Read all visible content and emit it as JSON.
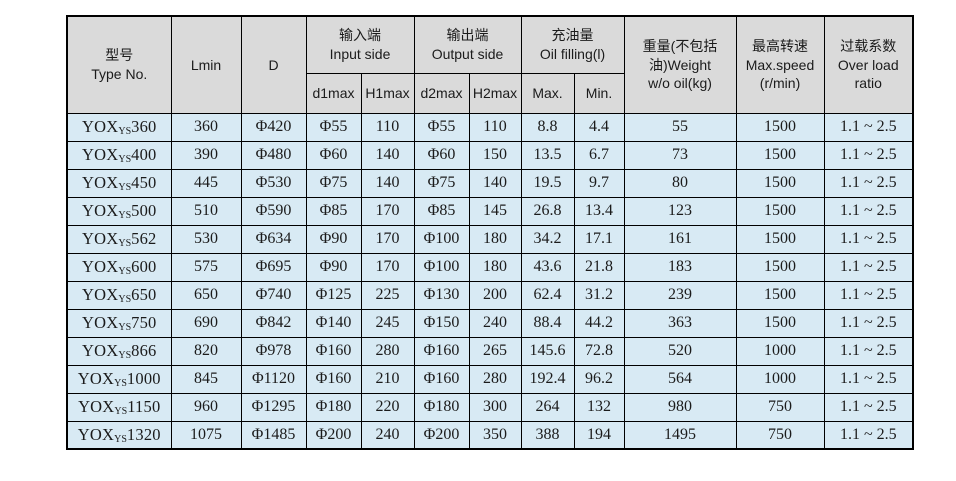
{
  "colors": {
    "header_bg": "#dadada",
    "row_bg": "#d8eaf4",
    "border": "#000000",
    "text": "#1b1b1b",
    "page_bg": "#ffffff"
  },
  "table": {
    "header": {
      "type_no": {
        "zh": "型号",
        "en": "Type No."
      },
      "lmin": "Lmin",
      "d": "D",
      "input_side": {
        "zh": "输入端",
        "en": "Input side"
      },
      "output_side": {
        "zh": "输出端",
        "en": "Output side"
      },
      "oil_filling": {
        "zh": "充油量",
        "en": "Oil filling(l)"
      },
      "weight": {
        "line1": "重量(不包括",
        "line2": "油)Weight",
        "line3": "w/o oil(kg)"
      },
      "max_speed": {
        "line1": "最高转速",
        "line2": "Max.speed",
        "line3": "(r/min)"
      },
      "overload": {
        "line1": "过载系数",
        "line2": "Over load",
        "line3": "ratio"
      },
      "sub": {
        "d1max": "d1max",
        "h1max": "H1max",
        "d2max": "d2max",
        "h2max": "H2max",
        "oil_max": "Max.",
        "oil_min": "Min."
      }
    },
    "rows": [
      {
        "series": "YOX",
        "sub": "YS",
        "size": "360",
        "lmin": "360",
        "d": "Φ420",
        "d1max": "Φ55",
        "h1max": "110",
        "d2max": "Φ55",
        "h2max": "110",
        "oil_max": "8.8",
        "oil_min": "4.4",
        "weight": "55",
        "max_speed": "1500",
        "overload": "1.1 ~ 2.5"
      },
      {
        "series": "YOX",
        "sub": "YS",
        "size": "400",
        "lmin": "390",
        "d": "Φ480",
        "d1max": "Φ60",
        "h1max": "140",
        "d2max": "Φ60",
        "h2max": "150",
        "oil_max": "13.5",
        "oil_min": "6.7",
        "weight": "73",
        "max_speed": "1500",
        "overload": "1.1 ~ 2.5"
      },
      {
        "series": "YOX",
        "sub": "YS",
        "size": "450",
        "lmin": "445",
        "d": "Φ530",
        "d1max": "Φ75",
        "h1max": "140",
        "d2max": "Φ75",
        "h2max": "140",
        "oil_max": "19.5",
        "oil_min": "9.7",
        "weight": "80",
        "max_speed": "1500",
        "overload": "1.1 ~ 2.5"
      },
      {
        "series": "YOX",
        "sub": "YS",
        "size": "500",
        "lmin": "510",
        "d": "Φ590",
        "d1max": "Φ85",
        "h1max": "170",
        "d2max": "Φ85",
        "h2max": "145",
        "oil_max": "26.8",
        "oil_min": "13.4",
        "weight": "123",
        "max_speed": "1500",
        "overload": "1.1 ~ 2.5"
      },
      {
        "series": "YOX",
        "sub": "YS",
        "size": "562",
        "lmin": "530",
        "d": "Φ634",
        "d1max": "Φ90",
        "h1max": "170",
        "d2max": "Φ100",
        "h2max": "180",
        "oil_max": "34.2",
        "oil_min": "17.1",
        "weight": "161",
        "max_speed": "1500",
        "overload": "1.1 ~ 2.5"
      },
      {
        "series": "YOX",
        "sub": "YS",
        "size": "600",
        "lmin": "575",
        "d": "Φ695",
        "d1max": "Φ90",
        "h1max": "170",
        "d2max": "Φ100",
        "h2max": "180",
        "oil_max": "43.6",
        "oil_min": "21.8",
        "weight": "183",
        "max_speed": "1500",
        "overload": "1.1 ~ 2.5"
      },
      {
        "series": "YOX",
        "sub": "YS",
        "size": "650",
        "lmin": "650",
        "d": "Φ740",
        "d1max": "Φ125",
        "h1max": "225",
        "d2max": "Φ130",
        "h2max": "200",
        "oil_max": "62.4",
        "oil_min": "31.2",
        "weight": "239",
        "max_speed": "1500",
        "overload": "1.1 ~ 2.5"
      },
      {
        "series": "YOX",
        "sub": "YS",
        "size": "750",
        "lmin": "690",
        "d": "Φ842",
        "d1max": "Φ140",
        "h1max": "245",
        "d2max": "Φ150",
        "h2max": "240",
        "oil_max": "88.4",
        "oil_min": "44.2",
        "weight": "363",
        "max_speed": "1500",
        "overload": "1.1 ~ 2.5"
      },
      {
        "series": "YOX",
        "sub": "YS",
        "size": "866",
        "lmin": "820",
        "d": "Φ978",
        "d1max": "Φ160",
        "h1max": "280",
        "d2max": "Φ160",
        "h2max": "265",
        "oil_max": "145.6",
        "oil_min": "72.8",
        "weight": "520",
        "max_speed": "1000",
        "overload": "1.1 ~ 2.5"
      },
      {
        "series": "YOX",
        "sub": "YS",
        "size": "1000",
        "lmin": "845",
        "d": "Φ1120",
        "d1max": "Φ160",
        "h1max": "210",
        "d2max": "Φ160",
        "h2max": "280",
        "oil_max": "192.4",
        "oil_min": "96.2",
        "weight": "564",
        "max_speed": "1000",
        "overload": "1.1 ~ 2.5"
      },
      {
        "series": "YOX",
        "sub": "YS",
        "size": "1150",
        "lmin": "960",
        "d": "Φ1295",
        "d1max": "Φ180",
        "h1max": "220",
        "d2max": "Φ180",
        "h2max": "300",
        "oil_max": "264",
        "oil_min": "132",
        "weight": "980",
        "max_speed": "750",
        "overload": "1.1 ~ 2.5"
      },
      {
        "series": "YOX",
        "sub": "YS",
        "size": "1320",
        "lmin": "1075",
        "d": "Φ1485",
        "d1max": "Φ200",
        "h1max": "240",
        "d2max": "Φ200",
        "h2max": "350",
        "oil_max": "388",
        "oil_min": "194",
        "weight": "1495",
        "max_speed": "750",
        "overload": "1.1 ~ 2.5"
      }
    ]
  }
}
